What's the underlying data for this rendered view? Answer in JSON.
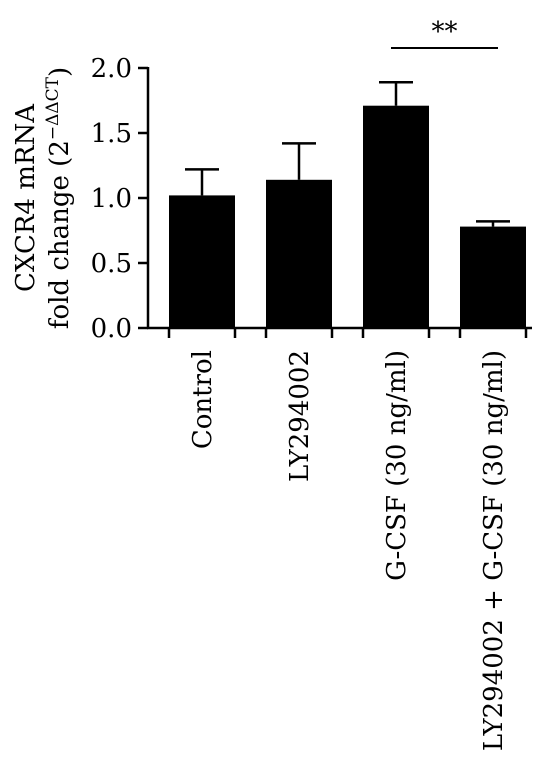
{
  "chart_data": {
    "type": "bar",
    "categories": [
      "Control",
      "LY294002",
      "G-CSF (30 ng/ml)",
      "LY294002 + G-CSF (30 ng/ml)"
    ],
    "values": [
      1.02,
      1.14,
      1.71,
      0.78
    ],
    "errors": [
      0.2,
      0.28,
      0.18,
      0.04
    ],
    "ylabel_line1": "CXCR4 mRNA",
    "ylabel_line2_prefix": "fold change (2",
    "ylabel_line2_sup": "−ΔΔCT",
    "ylabel_line2_suffix": ")",
    "ylim": [
      0,
      2.0
    ],
    "yticks": [
      "0.0",
      "0.5",
      "1.0",
      "1.5",
      "2.0"
    ],
    "ytick_values": [
      0,
      0.5,
      1.0,
      1.5,
      2.0
    ],
    "bar_color": "#000000",
    "significance": {
      "between": [
        2,
        3
      ],
      "label": "**"
    },
    "grid": false,
    "legend": "none"
  }
}
